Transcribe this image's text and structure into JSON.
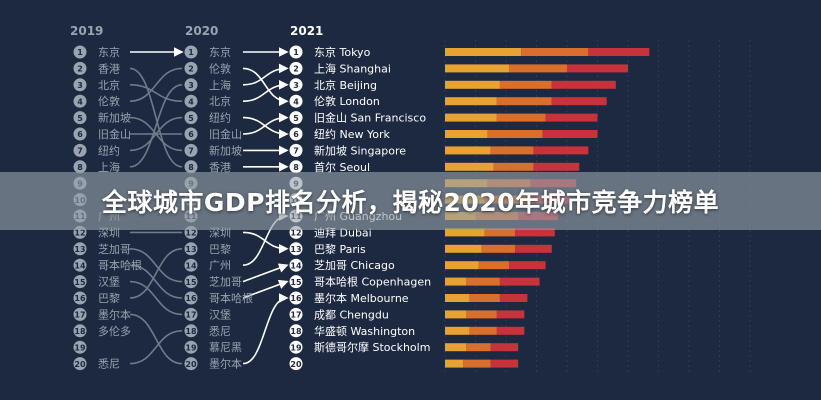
{
  "banner": {
    "title": "全球城市GDP排名分析，揭秘2020年城市竞争力榜单"
  },
  "colors": {
    "background": "#1d2940",
    "text": "#9aa3b0",
    "text_current": "#ffffff",
    "circle_fill": "#9aa3b0",
    "circle_text": "#1d2940",
    "arrow": "#ffffff",
    "curve": "#707a8a",
    "grid": "#3a4660",
    "series": [
      "#e8a233",
      "#d96f2c",
      "#c8323a"
    ]
  },
  "chart_data": {
    "type": "bar",
    "stacked": true,
    "orientation": "horizontal",
    "year_labels": [
      "2019",
      "2020",
      "2021"
    ],
    "rankings": {
      "2019": [
        "东京",
        "香港",
        "北京",
        "伦敦",
        "新加坡",
        "旧金山",
        "纽约",
        "上海",
        "",
        "",
        "广州",
        "深圳",
        "芝加哥",
        "哥本哈根",
        "汉堡",
        "巴黎",
        "墨尔本",
        "多伦多",
        "",
        "悉尼"
      ],
      "2020": [
        "东京",
        "伦敦",
        "上海",
        "北京",
        "纽约",
        "旧金山",
        "新加坡",
        "香港",
        "",
        "",
        "",
        "深圳",
        "巴黎",
        "广州",
        "芝加哥",
        "哥本哈根",
        "汉堡",
        "悉尼",
        "慕尼黑",
        "墨尔本"
      ],
      "2021": [
        "东京 Tokyo",
        "上海 Shanghai",
        "北京 Beijing",
        "伦敦 London",
        "旧金山 San Francisco",
        "纽约 New York",
        "新加坡 Singapore",
        "首尔 Seoul",
        "",
        "",
        "广州 Guangzhou",
        "迪拜 Dubai",
        "巴黎 Paris",
        "芝加哥 Chicago",
        "哥本哈根 Copenhagen",
        "墨尔本 Melbourne",
        "成都 Chengdu",
        "华盛顿 Washington",
        "斯德哥尔摩 Stockholm",
        ""
      ]
    },
    "links": [
      {
        "from": 1,
        "to": 1,
        "highlight": true
      },
      {
        "from": 2,
        "to": 8,
        "highlight": false
      },
      {
        "from": 3,
        "to": 4,
        "highlight": false
      },
      {
        "from": 4,
        "to": 2,
        "highlight": false
      },
      {
        "from": 5,
        "to": 7,
        "highlight": false
      },
      {
        "from": 6,
        "to": 6,
        "highlight": false
      },
      {
        "from": 7,
        "to": 5,
        "highlight": false
      },
      {
        "from": 8,
        "to": 3,
        "highlight": false
      },
      {
        "from": 12,
        "to": 12,
        "highlight": false
      },
      {
        "from": 13,
        "to": 15,
        "highlight": false
      },
      {
        "from": 14,
        "to": 16,
        "highlight": false
      },
      {
        "from": 15,
        "to": 17,
        "highlight": false
      },
      {
        "from": 16,
        "to": 13,
        "highlight": false
      },
      {
        "from": 17,
        "to": 20,
        "highlight": false
      },
      {
        "from": 20,
        "to": 18,
        "highlight": false
      }
    ],
    "arrows_2020_2021": [
      {
        "from": 1,
        "to": 1,
        "straight": true
      },
      {
        "from": 2,
        "to": 4
      },
      {
        "from": 3,
        "to": 2
      },
      {
        "from": 4,
        "to": 3
      },
      {
        "from": 5,
        "to": 6
      },
      {
        "from": 6,
        "to": 5
      },
      {
        "from": 7,
        "to": 7,
        "straight": true
      },
      {
        "from": 8,
        "to": 8,
        "straight": true
      },
      {
        "from": 12,
        "to": 13
      },
      {
        "from": 14,
        "to": 11
      },
      {
        "from": 15,
        "to": 14,
        "straight": true
      },
      {
        "from": 16,
        "to": 15,
        "straight": true
      },
      {
        "from": 20,
        "to": 16
      }
    ],
    "series": [
      {
        "values": [
          25,
          21,
          18,
          17,
          17,
          14,
          15,
          16,
          14,
          13,
          10,
          13,
          12,
          11,
          7,
          8,
          7,
          8,
          7,
          6
        ]
      },
      {
        "values": [
          22,
          19,
          17,
          18,
          16,
          18,
          14,
          13,
          14,
          14,
          14,
          10,
          11,
          10,
          11,
          10,
          10,
          9,
          8,
          9
        ]
      },
      {
        "values": [
          20,
          20,
          21,
          18,
          17,
          18,
          18,
          15,
          15,
          14,
          13,
          13,
          12,
          12,
          13,
          9,
          9,
          9,
          9,
          9
        ]
      }
    ],
    "xlim": [
      0,
      100
    ],
    "grid": true
  }
}
